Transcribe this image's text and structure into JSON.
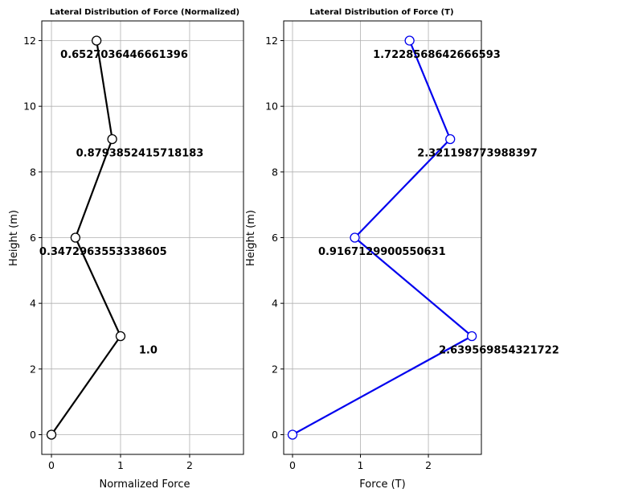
{
  "chart_data": [
    {
      "type": "line",
      "title": "Lateral Distribution of Force (Normalized)",
      "xlabel": "Normalized Force",
      "ylabel": "Height (m)",
      "xlim": [
        -0.14,
        2.78
      ],
      "ylim": [
        -0.6,
        12.6
      ],
      "xticks": [
        0,
        1,
        2
      ],
      "yticks": [
        0,
        2,
        4,
        6,
        8,
        10,
        12
      ],
      "grid": true,
      "color": "#000000",
      "series": [
        {
          "x": [
            0,
            1.0,
            0.3472963553338605,
            0.8793852415718183,
            0.6527036446661396
          ],
          "y": [
            0,
            3,
            6,
            9,
            12
          ]
        }
      ],
      "labels": [
        "1.0",
        "0.3472963553338605",
        "0.8793852415718183",
        "0.6527036446661396"
      ]
    },
    {
      "type": "line",
      "title": "Lateral Distribution of Force (T)",
      "xlabel": "Force (T)",
      "ylabel": "Height (m)",
      "xlim": [
        -0.13,
        2.78
      ],
      "ylim": [
        -0.6,
        12.6
      ],
      "xticks": [
        0,
        1,
        2
      ],
      "yticks": [
        0,
        2,
        4,
        6,
        8,
        10,
        12
      ],
      "grid": true,
      "color": "#0000ee",
      "series": [
        {
          "x": [
            0,
            2.639569854321722,
            0.9167129900550631,
            2.321198773988397,
            1.7228568642666593
          ],
          "y": [
            0,
            3,
            6,
            9,
            12
          ]
        }
      ],
      "labels": [
        "2.639569854321722",
        "0.9167129900550631",
        "2.321198773988397",
        "1.7228568642666593"
      ]
    }
  ]
}
